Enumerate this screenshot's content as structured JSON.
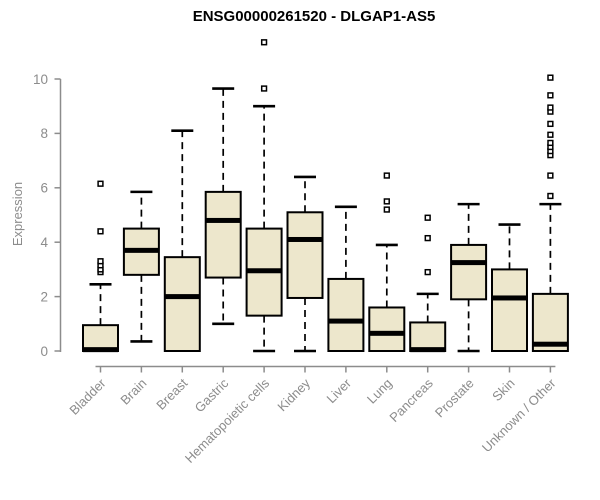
{
  "title": "ENSG00000261520 - DLGAP1-AS5",
  "chart_data": {
    "type": "boxplot",
    "title": "ENSG00000261520 - DLGAP1-AS5",
    "xlabel": "",
    "ylabel": "Expression",
    "ylim": [
      0,
      10
    ],
    "yticks": [
      0,
      2,
      4,
      6,
      8,
      10
    ],
    "grid": false,
    "legend": "none",
    "categories": [
      "Bladder",
      "Brain",
      "Breast",
      "Gastric",
      "Hematopoietic cells",
      "Kidney",
      "Liver",
      "Lung",
      "Pancreas",
      "Prostate",
      "Skin",
      "Unknown / Other"
    ],
    "series": [
      {
        "name": "Bladder",
        "min": 0,
        "q1": 0,
        "median": 0.05,
        "q3": 0.95,
        "max": 2.45,
        "outliers": [
          2.9,
          3.0,
          3.15,
          3.3,
          4.4,
          6.15
        ]
      },
      {
        "name": "Brain",
        "min": 0.35,
        "q1": 2.8,
        "median": 3.7,
        "q3": 4.5,
        "max": 5.85,
        "outliers": []
      },
      {
        "name": "Breast",
        "min": 0,
        "q1": 0,
        "median": 2.0,
        "q3": 3.45,
        "max": 8.1,
        "outliers": []
      },
      {
        "name": "Gastric",
        "min": 1.0,
        "q1": 2.7,
        "median": 4.8,
        "q3": 5.85,
        "max": 9.65,
        "outliers": []
      },
      {
        "name": "Hematopoietic cells",
        "min": 0,
        "q1": 1.3,
        "median": 2.95,
        "q3": 4.5,
        "max": 9.0,
        "outliers": [
          9.65,
          11.35
        ]
      },
      {
        "name": "Kidney",
        "min": 0,
        "q1": 1.95,
        "median": 4.1,
        "q3": 5.1,
        "max": 6.4,
        "outliers": []
      },
      {
        "name": "Liver",
        "min": 0,
        "q1": 0,
        "median": 1.1,
        "q3": 2.65,
        "max": 5.3,
        "outliers": []
      },
      {
        "name": "Lung",
        "min": 0,
        "q1": 0,
        "median": 0.65,
        "q3": 1.6,
        "max": 3.9,
        "outliers": [
          5.2,
          5.5,
          6.45
        ]
      },
      {
        "name": "Pancreas",
        "min": 0,
        "q1": 0,
        "median": 0.05,
        "q3": 1.05,
        "max": 2.1,
        "outliers": [
          2.9,
          4.15,
          4.9
        ]
      },
      {
        "name": "Prostate",
        "min": 0,
        "q1": 1.9,
        "median": 3.25,
        "q3": 3.9,
        "max": 5.4,
        "outliers": []
      },
      {
        "name": "Skin",
        "min": 0,
        "q1": 0,
        "median": 1.95,
        "q3": 3.0,
        "max": 4.65,
        "outliers": []
      },
      {
        "name": "Unknown / Other",
        "min": 0,
        "q1": 0,
        "median": 0.25,
        "q3": 2.1,
        "max": 5.4,
        "outliers": [
          5.7,
          6.45,
          7.2,
          7.35,
          7.5,
          7.65,
          7.95,
          8.35,
          8.8,
          8.95,
          9.4,
          10.05
        ]
      }
    ],
    "colors": {
      "box_fill": "#EDE7CC",
      "box_stroke": "#000000",
      "median": "#000000",
      "axis": "#8C8C8C",
      "title_color": "#000000",
      "background": "#FFFFFF"
    }
  }
}
